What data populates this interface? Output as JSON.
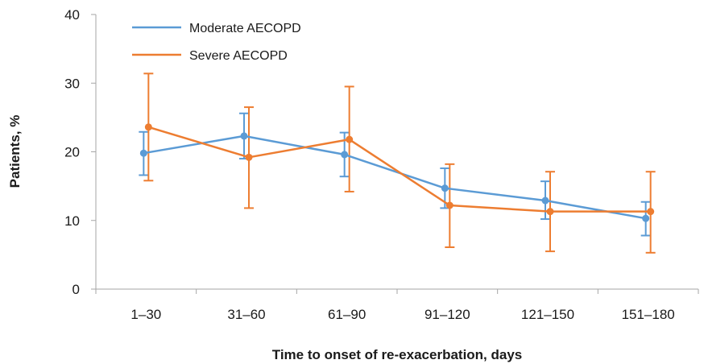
{
  "chart_data": {
    "type": "line",
    "title": "",
    "xlabel": "Time to onset of re-exacerbation, days",
    "ylabel": "Patients, %",
    "categories": [
      "1–30",
      "31–60",
      "61–90",
      "91–120",
      "121–150",
      "151–180"
    ],
    "ylim": [
      0,
      40
    ],
    "yticks": [
      0,
      10,
      20,
      30,
      40
    ],
    "grid": false,
    "legend_position": "top-left",
    "error_bars": true,
    "series": [
      {
        "name": "Moderate AECOPD",
        "color": "#5b9bd5",
        "values": [
          19.8,
          22.3,
          19.6,
          14.7,
          12.9,
          10.3
        ],
        "error_low": [
          16.6,
          19.0,
          16.4,
          11.8,
          10.2,
          7.8
        ],
        "error_high": [
          22.9,
          25.6,
          22.8,
          17.6,
          15.7,
          12.7
        ]
      },
      {
        "name": "Severe AECOPD",
        "color": "#ed7d31",
        "values": [
          23.6,
          19.2,
          21.8,
          12.2,
          11.3,
          11.3
        ],
        "error_low": [
          15.8,
          11.8,
          14.2,
          6.1,
          5.5,
          5.3
        ],
        "error_high": [
          31.4,
          26.5,
          29.5,
          18.2,
          17.1,
          17.1
        ]
      }
    ]
  }
}
